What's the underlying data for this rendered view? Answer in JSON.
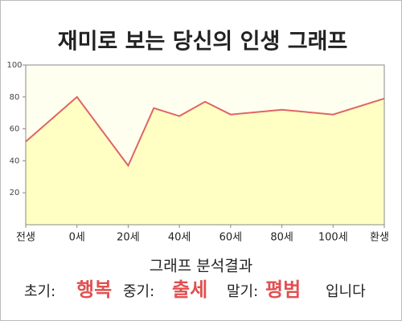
{
  "chart_data": {
    "type": "area",
    "title": "재미로 보는 당신의 인생 그래프",
    "x": [
      -20,
      0,
      20,
      30,
      40,
      50,
      60,
      80,
      100,
      120
    ],
    "values": [
      52,
      80,
      37,
      73,
      68,
      77,
      69,
      72,
      69,
      79
    ],
    "color": "#e06464",
    "fill": "#ffffc4",
    "xlim": [
      -20,
      120
    ],
    "xticks": [
      {
        "value": -20,
        "label": "전생"
      },
      {
        "value": 0,
        "label": "0세"
      },
      {
        "value": 20,
        "label": "20세"
      },
      {
        "value": 40,
        "label": "40세"
      },
      {
        "value": 60,
        "label": "60세"
      },
      {
        "value": 80,
        "label": "80세"
      },
      {
        "value": 100,
        "label": "100세"
      },
      {
        "value": 120,
        "label": "환생"
      }
    ],
    "ylim": [
      0,
      100
    ],
    "yticks": [
      20,
      40,
      60,
      80,
      100
    ],
    "grid": false
  },
  "result": {
    "heading": "그래프 분석결과",
    "items": [
      {
        "label": "초기:",
        "value": "행복"
      },
      {
        "label": "중기:",
        "value": "출세"
      },
      {
        "label": "말기:",
        "value": "평범"
      }
    ],
    "suffix": "입니다"
  }
}
